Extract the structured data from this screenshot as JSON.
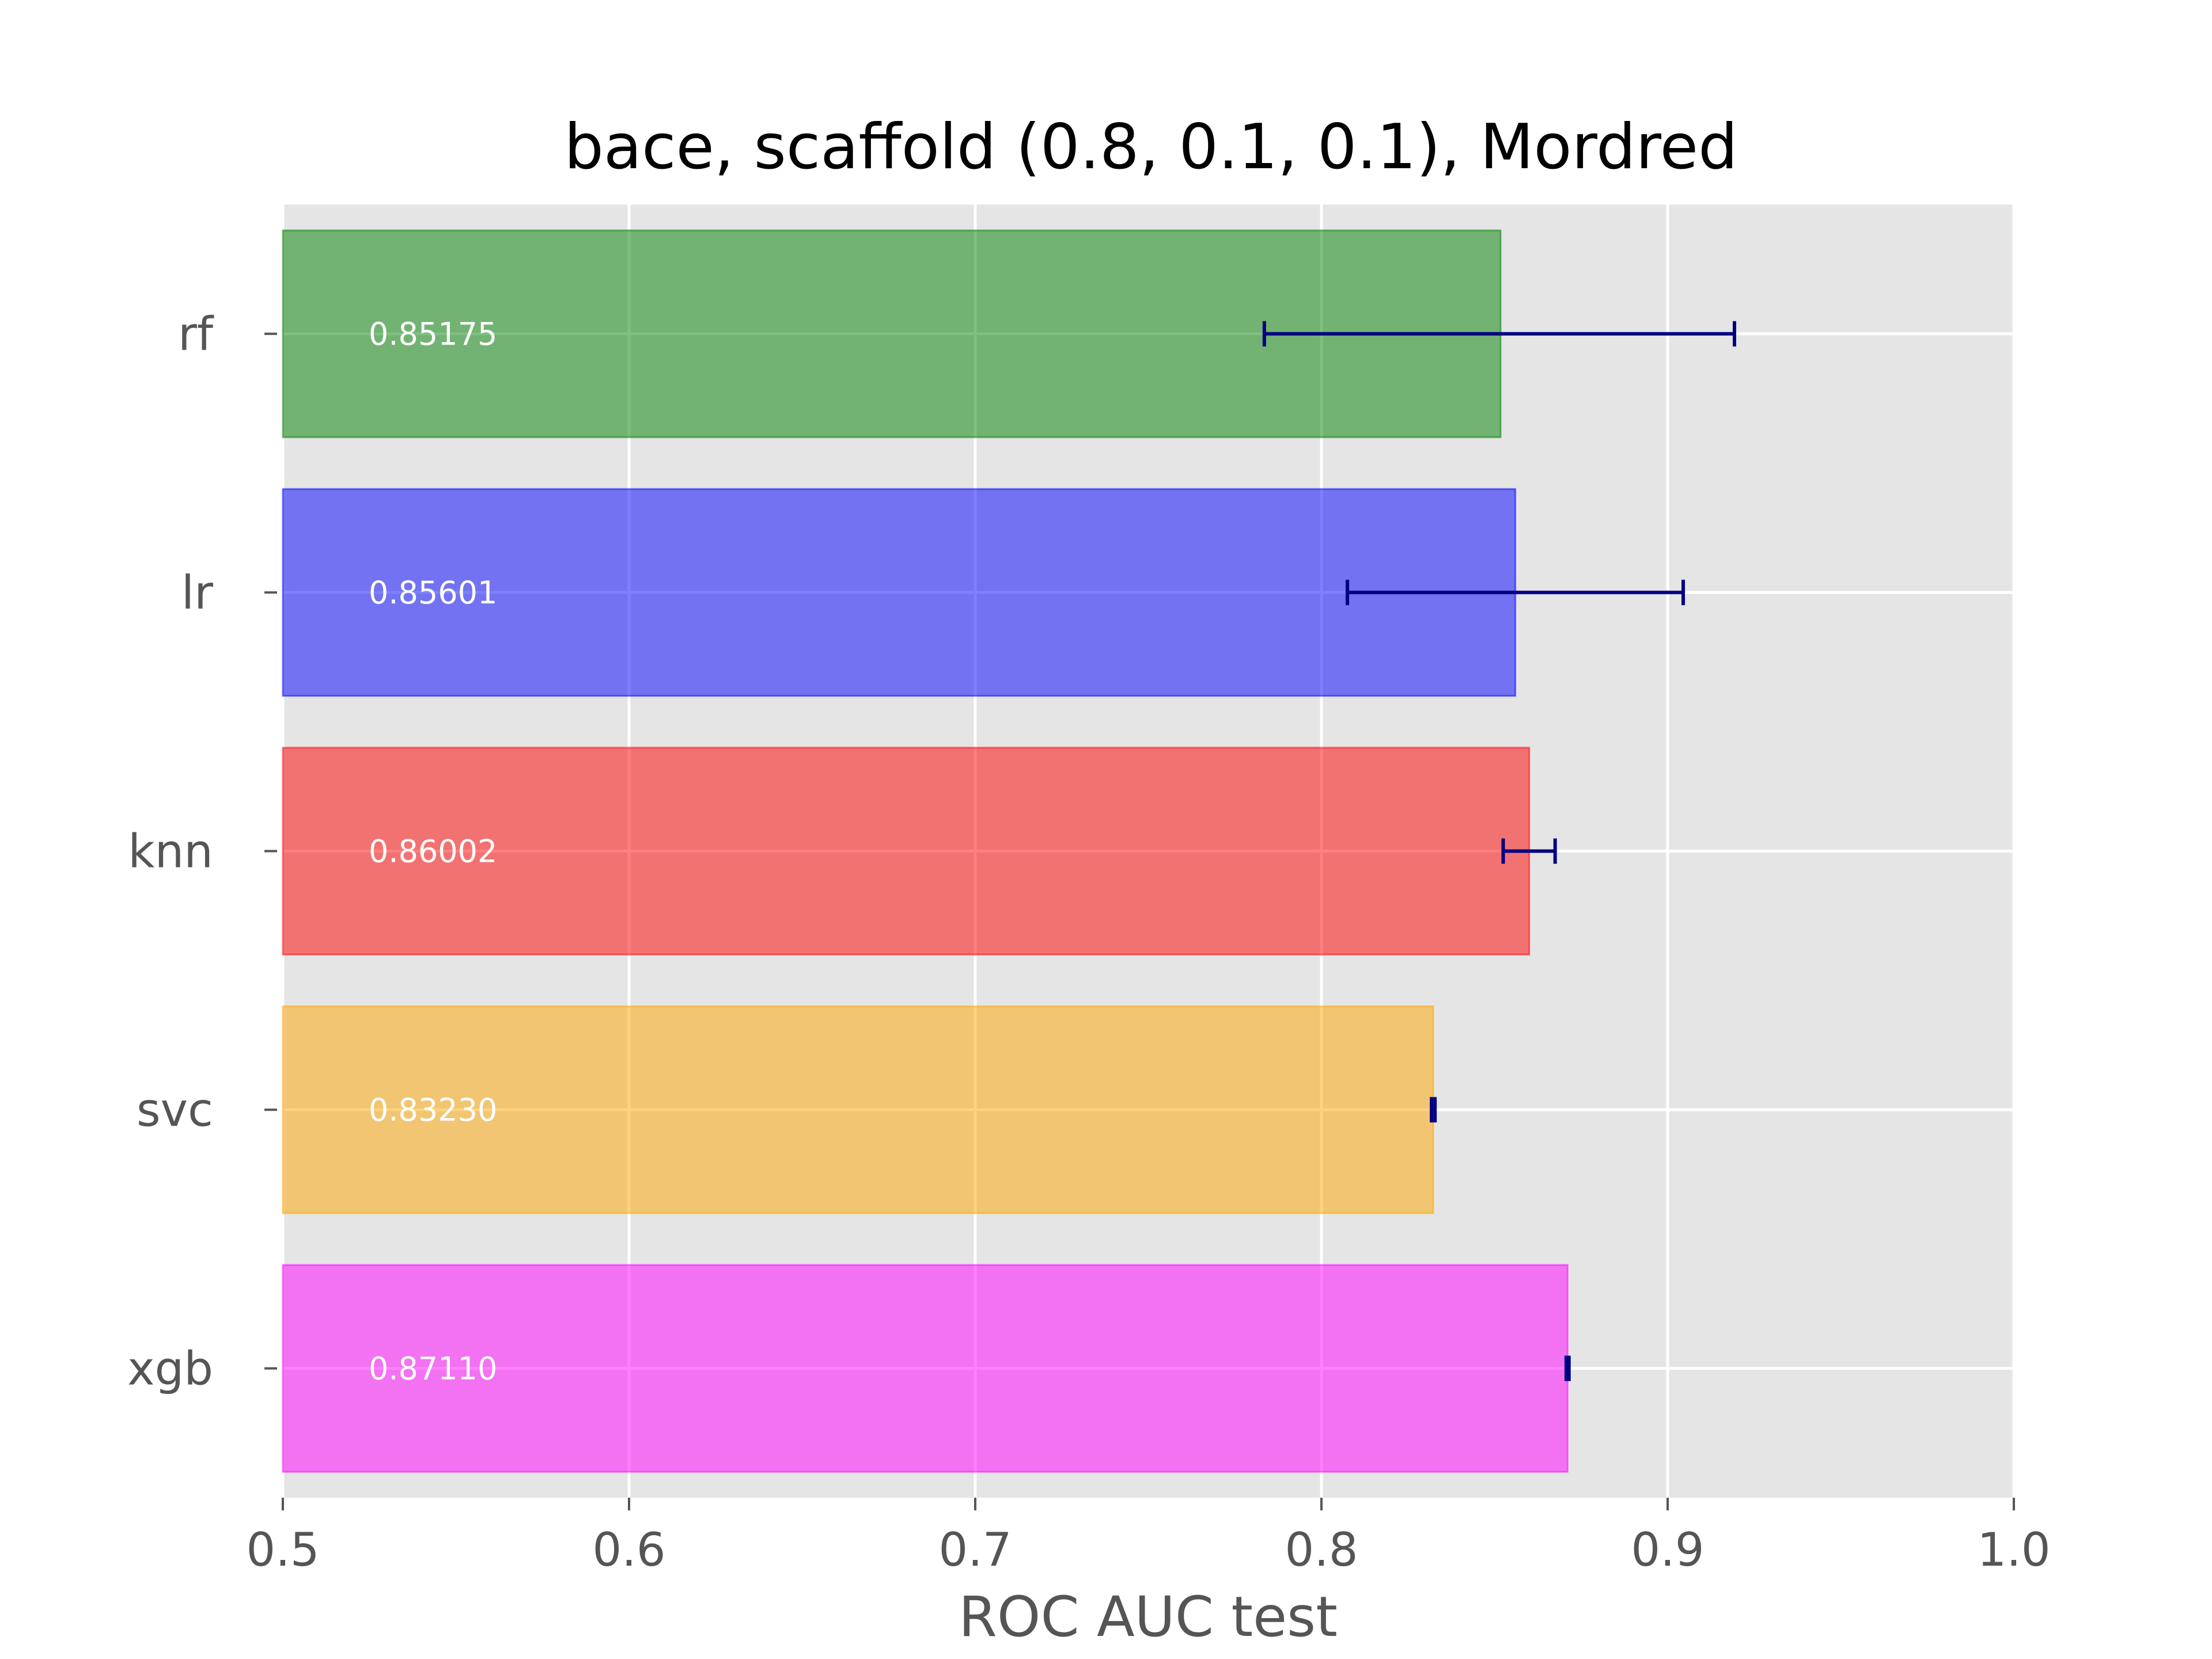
{
  "chart_data": {
    "type": "bar",
    "orientation": "horizontal",
    "title": "bace, scaffold (0.8, 0.1, 0.1), Mordred",
    "xlabel": "ROC AUC test",
    "ylabel": "",
    "xlim": [
      0.5,
      1.0
    ],
    "xticks": [
      "0.5",
      "0.6",
      "0.7",
      "0.8",
      "0.9",
      "1.0"
    ],
    "grid": true,
    "background": "#e5e5e5",
    "error_bar_color": "#000080",
    "categories": [
      "rf",
      "lr",
      "knn",
      "svc",
      "xgb"
    ],
    "values": [
      0.85175,
      0.85601,
      0.86002,
      0.8323,
      0.8711
    ],
    "value_labels": [
      "0.85175",
      "0.85601",
      "0.86002",
      "0.83230",
      "0.87110"
    ],
    "error_low": [
      0.7835,
      0.8075,
      0.8525,
      0.8318,
      0.8707
    ],
    "error_high": [
      0.9193,
      0.9045,
      0.8675,
      0.8328,
      0.8715
    ],
    "colors": [
      "#008000",
      "#0000ff",
      "#ff0000",
      "#ffa500",
      "#ff00ff"
    ]
  }
}
